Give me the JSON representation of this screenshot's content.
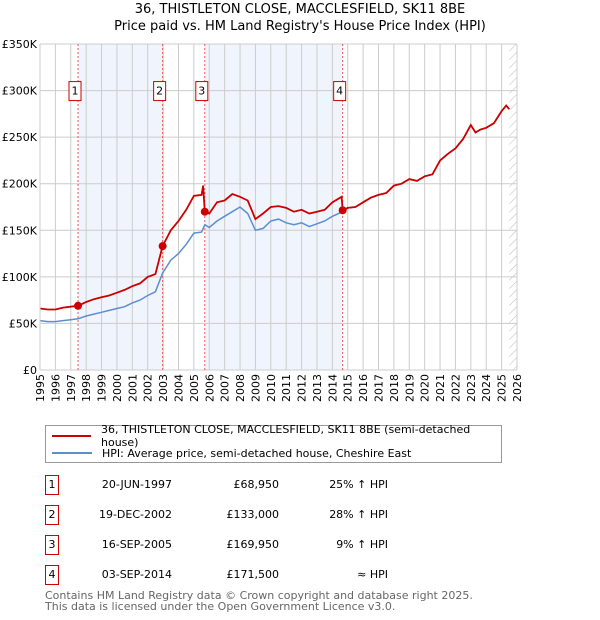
{
  "chart_data": {
    "type": "line",
    "title": "36, THISTLETON CLOSE, MACCLESFIELD, SK11 8BE",
    "subtitle": "Price paid vs. HM Land Registry's House Price Index (HPI)",
    "xlim": [
      1995,
      2026
    ],
    "ylim": [
      0,
      350000
    ],
    "y_ticks": [
      0,
      50000,
      100000,
      150000,
      200000,
      250000,
      300000,
      350000
    ],
    "y_tick_labels": [
      "£0",
      "£50K",
      "£100K",
      "£150K",
      "£200K",
      "£250K",
      "£300K",
      "£350K"
    ],
    "x_tick_labels": [
      "1995",
      "1996",
      "1997",
      "1998",
      "1999",
      "2000",
      "2001",
      "2002",
      "2003",
      "2004",
      "2005",
      "2006",
      "2007",
      "2008",
      "2009",
      "2010",
      "2011",
      "2012",
      "2013",
      "2014",
      "2015",
      "2016",
      "2017",
      "2018",
      "2019",
      "2020",
      "2021",
      "2022",
      "2023",
      "2024",
      "2025",
      "2026"
    ],
    "grid": true,
    "shaded_ranges": [
      [
        1997.47,
        2002.97
      ],
      [
        2005.71,
        2014.67
      ]
    ],
    "hatched_from": 2025.5,
    "series": [
      {
        "name": "36, THISTLETON CLOSE, MACCLESFIELD, SK11 8BE (semi-detached house)",
        "color": "#cc0000",
        "x": [
          1995,
          1995.5,
          1996,
          1996.5,
          1997,
          1997.47,
          1998,
          1998.5,
          1999,
          1999.5,
          2000,
          2000.5,
          2001,
          2001.5,
          2002,
          2002.5,
          2002.97,
          2003.5,
          2004,
          2004.5,
          2005,
          2005.5,
          2005.6,
          2005.71,
          2006,
          2006.5,
          2007,
          2007.5,
          2008,
          2008.5,
          2009,
          2009.5,
          2010,
          2010.5,
          2011,
          2011.5,
          2012,
          2012.5,
          2013,
          2013.5,
          2014,
          2014.6,
          2014.67,
          2015,
          2015.5,
          2016,
          2016.5,
          2017,
          2017.5,
          2018,
          2018.5,
          2019,
          2019.5,
          2020,
          2020.5,
          2021,
          2021.5,
          2022,
          2022.5,
          2023,
          2023.3,
          2023.6,
          2024,
          2024.5,
          2025,
          2025.3,
          2025.5
        ],
        "y": [
          66000,
          65000,
          65000,
          67000,
          68000,
          68950,
          73000,
          76000,
          78000,
          80000,
          83000,
          86000,
          90000,
          93000,
          100000,
          103000,
          133000,
          150000,
          160000,
          172000,
          187000,
          188000,
          198000,
          169950,
          168000,
          180000,
          182000,
          189000,
          186000,
          182000,
          162000,
          168000,
          175000,
          176000,
          174000,
          170000,
          172000,
          168000,
          170000,
          172000,
          180000,
          186000,
          171500,
          174000,
          175000,
          180000,
          185000,
          188000,
          190000,
          198000,
          200000,
          205000,
          203000,
          208000,
          210000,
          225000,
          232000,
          238000,
          248000,
          263000,
          255000,
          258000,
          260000,
          265000,
          278000,
          284000,
          280000
        ]
      },
      {
        "name": "HPI: Average price, semi-detached house, Cheshire East",
        "color": "#5b8fd0",
        "x": [
          1995,
          1995.5,
          1996,
          1996.5,
          1997,
          1997.47,
          1998,
          1998.5,
          1999,
          1999.5,
          2000,
          2000.5,
          2001,
          2001.5,
          2002,
          2002.5,
          2002.97,
          2003.5,
          2004,
          2004.5,
          2005,
          2005.5,
          2005.71,
          2006,
          2006.5,
          2007,
          2007.5,
          2008,
          2008.5,
          2009,
          2009.5,
          2010,
          2010.5,
          2011,
          2011.5,
          2012,
          2012.5,
          2013,
          2013.5,
          2014,
          2014.67,
          2015,
          2015.5,
          2016,
          2016.5,
          2017,
          2017.5,
          2018,
          2018.5,
          2019,
          2019.5,
          2020,
          2020.5,
          2021,
          2021.5,
          2022,
          2022.5,
          2023,
          2023.3,
          2023.6,
          2024,
          2024.5,
          2025,
          2025.3,
          2025.5
        ],
        "y": [
          53000,
          52000,
          52000,
          53000,
          54000,
          55000,
          58000,
          60000,
          62000,
          64000,
          66000,
          68000,
          72000,
          75000,
          80000,
          84000,
          104000,
          118000,
          125000,
          135000,
          147000,
          148000,
          156000,
          153000,
          160000,
          165000,
          170000,
          175000,
          168000,
          150000,
          152000,
          160000,
          162000,
          158000,
          156000,
          158000,
          154000,
          157000,
          160000,
          165000,
          170000,
          174000,
          175000,
          180000,
          185000,
          188000,
          190000,
          198000,
          200000,
          205000,
          203000,
          208000,
          210000,
          225000,
          232000,
          238000,
          248000,
          263000,
          255000,
          258000,
          260000,
          265000,
          278000,
          284000,
          280000
        ]
      }
    ],
    "sales": [
      {
        "label": "1",
        "x": 1997.47,
        "y": 68950
      },
      {
        "label": "2",
        "x": 2002.97,
        "y": 133000
      },
      {
        "label": "3",
        "x": 2005.71,
        "y": 169950
      },
      {
        "label": "4",
        "x": 2014.67,
        "y": 171500
      }
    ]
  },
  "legend": [
    {
      "label": "36, THISTLETON CLOSE, MACCLESFIELD, SK11 8BE (semi-detached house)",
      "color": "#cc0000"
    },
    {
      "label": "HPI: Average price, semi-detached house, Cheshire East",
      "color": "#5b8fd0"
    }
  ],
  "transactions": [
    {
      "num": "1",
      "date": "20-JUN-1997",
      "price": "£68,950",
      "hpi": "25% ↑ HPI"
    },
    {
      "num": "2",
      "date": "19-DEC-2002",
      "price": "£133,000",
      "hpi": "28% ↑ HPI"
    },
    {
      "num": "3",
      "date": "16-SEP-2005",
      "price": "£169,950",
      "hpi": "9% ↑ HPI"
    },
    {
      "num": "4",
      "date": "03-SEP-2014",
      "price": "£171,500",
      "hpi": "≈ HPI"
    }
  ],
  "footer": {
    "line1": "Contains HM Land Registry data © Crown copyright and database right 2025.",
    "line2": "This data is licensed under the Open Government Licence v3.0."
  }
}
